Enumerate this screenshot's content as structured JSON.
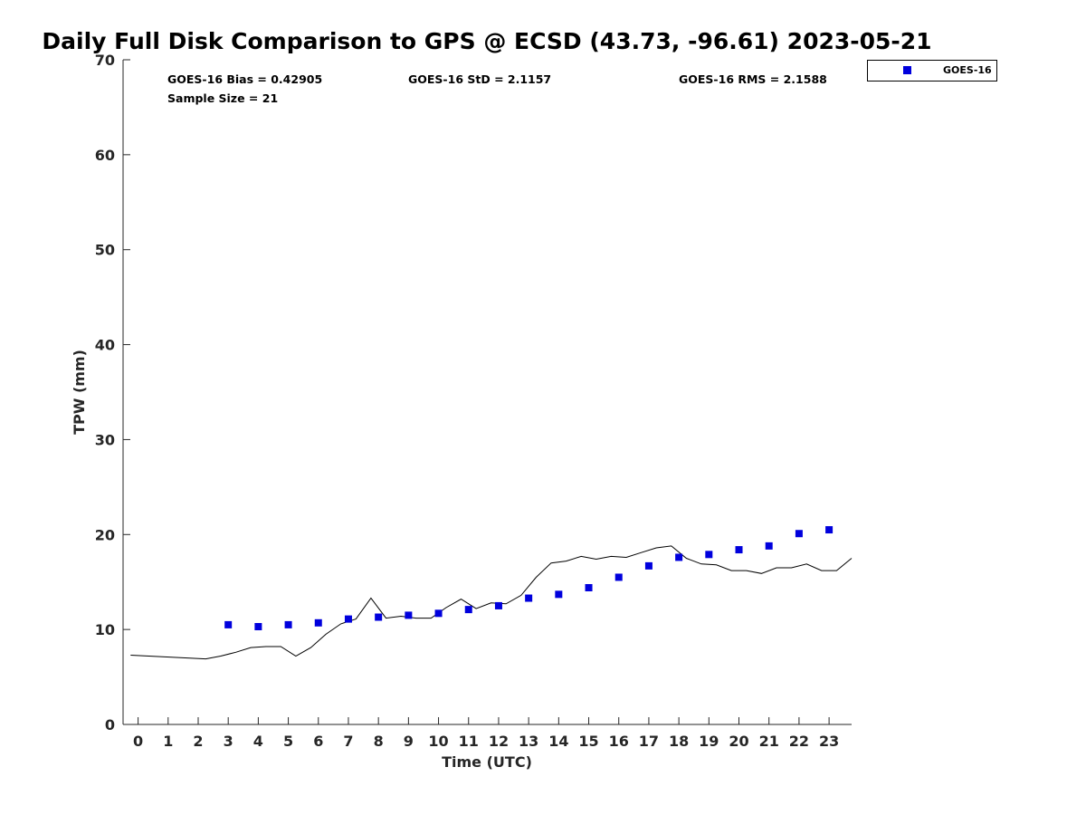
{
  "chart_data": {
    "type": "scatter",
    "title": "Daily Full Disk Comparison to GPS @ ECSD (43.73, -96.61) 2023-05-21",
    "xlabel": "Time (UTC)",
    "ylabel": "TPW (mm)",
    "xlim": [
      -0.5,
      23.75
    ],
    "ylim": [
      0,
      70
    ],
    "x_ticks": [
      "0",
      "1",
      "2",
      "3",
      "4",
      "5",
      "6",
      "7",
      "8",
      "9",
      "10",
      "11",
      "12",
      "13",
      "14",
      "15",
      "16",
      "17",
      "18",
      "19",
      "20",
      "21",
      "22",
      "23"
    ],
    "y_ticks": [
      "0",
      "10",
      "20",
      "30",
      "40",
      "50",
      "60",
      "70"
    ],
    "grid": false,
    "legend_position": "top-right",
    "stats": {
      "bias": "GOES-16 Bias = 0.42905",
      "std": "GOES-16 StD = 2.1157",
      "rms": "GOES-16 RMS = 2.1588",
      "sample": "Sample Size = 21"
    },
    "series": [
      {
        "name": "GOES-16",
        "kind": "scatter",
        "marker": "square",
        "color": "#0000dd",
        "x": [
          3,
          4,
          5,
          6,
          7,
          8,
          9,
          10,
          11,
          12,
          13,
          14,
          15,
          16,
          17,
          18,
          19,
          20,
          21,
          22,
          23
        ],
        "y": [
          10.5,
          10.3,
          10.5,
          10.7,
          11.1,
          11.3,
          11.5,
          11.7,
          12.1,
          12.5,
          13.3,
          13.7,
          14.4,
          15.5,
          16.7,
          17.6,
          17.9,
          18.4,
          18.8,
          20.1,
          20.5
        ]
      },
      {
        "kind": "line",
        "color": "#000000",
        "x": [
          -0.25,
          2.25,
          2.75,
          3.25,
          3.75,
          4.25,
          4.75,
          5.25,
          5.75,
          6.25,
          6.75,
          7.25,
          7.75,
          8.25,
          8.75,
          9.25,
          9.75,
          10.25,
          10.75,
          11.25,
          11.75,
          12.25,
          12.75,
          13.25,
          13.75,
          14.25,
          14.75,
          15.25,
          15.75,
          16.25,
          16.75,
          17.25,
          17.75,
          18.25,
          18.75,
          19.25,
          19.75,
          20.25,
          20.75,
          21.25,
          21.75,
          22.25,
          22.75,
          23.25,
          23.75
        ],
        "y": [
          7.3,
          6.9,
          7.2,
          7.6,
          8.1,
          8.2,
          8.2,
          7.2,
          8.1,
          9.5,
          10.6,
          11.1,
          13.3,
          11.2,
          11.4,
          11.2,
          11.2,
          12.3,
          13.2,
          12.2,
          12.8,
          12.7,
          13.6,
          15.5,
          17.0,
          17.2,
          17.7,
          17.4,
          17.7,
          17.6,
          18.1,
          18.6,
          18.8,
          17.5,
          16.9,
          16.8,
          16.2,
          16.2,
          15.9,
          16.5,
          16.5,
          16.9,
          16.2,
          16.2,
          17.5
        ]
      }
    ]
  }
}
